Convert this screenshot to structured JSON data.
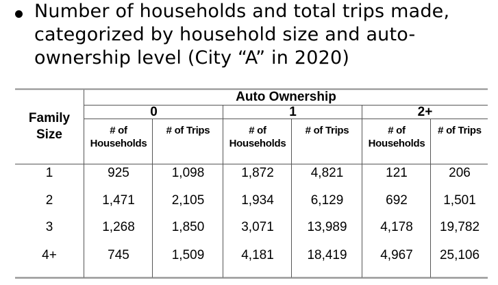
{
  "bullet": {
    "lines": [
      "Number of households and total trips made,",
      "categorized by household size and auto-",
      "ownership level (City “A” in 2020)"
    ]
  },
  "table": {
    "row_header_lines": [
      "Family",
      "Size"
    ],
    "group_header": "Auto Ownership",
    "levels": [
      "0",
      "1",
      "2+"
    ],
    "sub_households_lines": [
      "# of",
      "Households"
    ],
    "sub_trips": "# of Trips",
    "rows": [
      {
        "size": "1",
        "cells": [
          "925",
          "1,098",
          "1,872",
          "4,821",
          "121",
          "206"
        ]
      },
      {
        "size": "2",
        "cells": [
          "1,471",
          "2,105",
          "1,934",
          "6,129",
          "692",
          "1,501"
        ]
      },
      {
        "size": "3",
        "cells": [
          "1,268",
          "1,850",
          "3,071",
          "13,989",
          "4,178",
          "19,782"
        ]
      },
      {
        "size": "4+",
        "cells": [
          "745",
          "1,509",
          "4,181",
          "18,419",
          "4,967",
          "25,106"
        ]
      }
    ]
  }
}
